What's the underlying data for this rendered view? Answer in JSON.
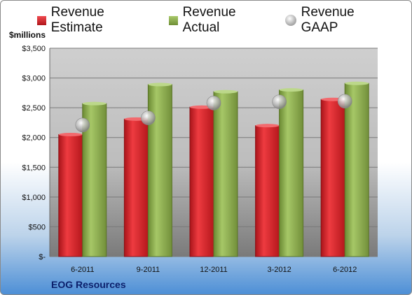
{
  "chart_data": {
    "type": "bar",
    "unit_label": "$millions",
    "categories": [
      "6-2011",
      "9-2011",
      "12-2011",
      "3-2012",
      "6-2012"
    ],
    "series": [
      {
        "name": "Revenue Estimate",
        "kind": "bar",
        "color": "#d6262b",
        "values": [
          2050,
          2310,
          2510,
          2200,
          2640
        ]
      },
      {
        "name": "Revenue Actual",
        "kind": "bar",
        "color": "#8db04f",
        "values": [
          2570,
          2890,
          2770,
          2800,
          2910
        ]
      },
      {
        "name": "Revenue GAAP",
        "kind": "marker",
        "color": "#b4b4b4",
        "values": [
          2210,
          2330,
          2580,
          2600,
          2610
        ]
      }
    ],
    "ylim": [
      0,
      3500
    ],
    "yticks": [
      0,
      500,
      1000,
      1500,
      2000,
      2500,
      3000,
      3500
    ],
    "ytick_labels": [
      "$-",
      "$500",
      "$1,000",
      "$1,500",
      "$2,000",
      "$2,500",
      "$3,000",
      "$3,500"
    ],
    "grid": true,
    "legend_position": "top"
  },
  "footer": {
    "company": "EOG Resources"
  }
}
